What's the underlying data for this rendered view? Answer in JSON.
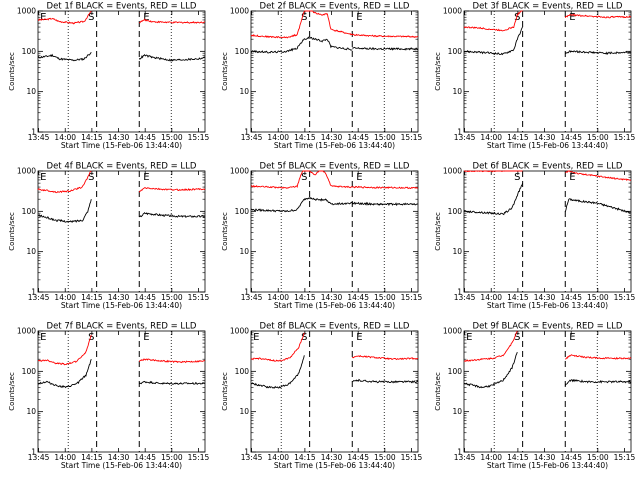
{
  "chart_data": {
    "type": "line",
    "ylabel": "Counts/sec",
    "xlabel": "Start Time (15-Feb-06 13:44:40)",
    "x_ticks": [
      "13:45",
      "14:00",
      "14:15",
      "14:30",
      "14:45",
      "15:00",
      "15:15"
    ],
    "y_ticks": [
      "1",
      "10",
      "100",
      "1000"
    ],
    "y_scale": "log",
    "ylim": [
      1,
      1000
    ],
    "x_range_minutes": [
      0,
      94
    ],
    "series_names": [
      "Events",
      "LLD"
    ],
    "series_colors": {
      "Events": "#000000",
      "LLD": "#ff0000"
    },
    "panels": [
      {
        "title": "Det 1f BLACK = Events, RED = LLD",
        "markers": [
          {
            "label": "E",
            "t": 3
          },
          {
            "label": "S",
            "t": 30
          },
          {
            "label": "E",
            "t": 61
          }
        ],
        "dotted": [
          17,
          75
        ],
        "dashed": [
          33,
          57
        ],
        "segments": [
          {
            "t": [
              0,
              5,
              8,
              12,
              20,
              26,
              30
            ],
            "events": [
              70,
              75,
              80,
              65,
              60,
              65,
              95
            ],
            "lld": [
              600,
              620,
              650,
              550,
              500,
              550,
              1000
            ]
          },
          {
            "t": [
              57,
              60,
              65,
              75,
              90,
              94
            ],
            "events": [
              65,
              80,
              70,
              60,
              65,
              70
            ],
            "lld": [
              520,
              600,
              540,
              520,
              520,
              530
            ]
          }
        ]
      },
      {
        "title": "Det 2f BLACK = Events, RED = LLD",
        "markers": [
          {
            "label": "S",
            "t": 30
          },
          {
            "label": "E",
            "t": 61
          }
        ],
        "dotted": [
          17,
          75
        ],
        "dashed": [
          33,
          57
        ],
        "segments": [
          {
            "t": [
              0,
              10,
              20,
              26,
              28,
              30,
              33
            ],
            "events": [
              100,
              95,
              100,
              120,
              160,
              200,
              220
            ],
            "lld": [
              250,
              230,
              220,
              260,
              500,
              1000,
              1200
            ]
          },
          {
            "t": [
              33,
              36,
              40,
              43,
              45,
              57
            ],
            "events": [
              220,
              200,
              180,
              200,
              130,
              110
            ],
            "lld": [
              1100,
              900,
              800,
              850,
              350,
              260
            ]
          },
          {
            "t": [
              57,
              70,
              94
            ],
            "events": [
              120,
              115,
              115
            ],
            "lld": [
              260,
              240,
              230
            ]
          }
        ]
      },
      {
        "title": "Det 3f BLACK = Events, RED = LLD",
        "markers": [
          {
            "label": "S",
            "t": 30
          },
          {
            "label": "E",
            "t": 61
          }
        ],
        "dotted": [
          17,
          75
        ],
        "dashed": [
          33,
          57
        ],
        "segments": [
          {
            "t": [
              0,
              8,
              16,
              22,
              28,
              30,
              33
            ],
            "events": [
              100,
              95,
              90,
              85,
              110,
              200,
              400
            ],
            "lld": [
              400,
              380,
              350,
              330,
              400,
              800,
              1100
            ]
          },
          {
            "t": [
              57,
              60,
              70,
              80,
              94
            ],
            "events": [
              90,
              100,
              95,
              90,
              95
            ],
            "lld": [
              700,
              800,
              750,
              700,
              720
            ]
          }
        ]
      },
      {
        "title": "Det 4f BLACK = Events, RED = LLD",
        "markers": [
          {
            "label": "E",
            "t": 3
          },
          {
            "label": "S",
            "t": 30
          },
          {
            "label": "E",
            "t": 61
          }
        ],
        "dotted": [
          17,
          75
        ],
        "dashed": [
          33,
          57
        ],
        "segments": [
          {
            "t": [
              0,
              5,
              10,
              18,
              25,
              28,
              30
            ],
            "events": [
              80,
              70,
              60,
              55,
              60,
              100,
              200
            ],
            "lld": [
              350,
              330,
              300,
              320,
              400,
              700,
              1100
            ]
          },
          {
            "t": [
              57,
              60,
              70,
              80,
              94
            ],
            "events": [
              70,
              90,
              80,
              75,
              75
            ],
            "lld": [
              300,
              380,
              350,
              340,
              360
            ]
          }
        ]
      },
      {
        "title": "Det 5f BLACK = Events, RED = LLD",
        "markers": [
          {
            "label": "S",
            "t": 30
          },
          {
            "label": "E",
            "t": 61
          }
        ],
        "dotted": [
          17,
          75
        ],
        "dashed": [
          33,
          57
        ],
        "segments": [
          {
            "t": [
              0,
              10,
              20,
              26,
              28,
              30,
              33
            ],
            "events": [
              110,
              105,
              100,
              110,
              150,
              200,
              220
            ],
            "lld": [
              420,
              400,
              380,
              420,
              800,
              1200,
              1300
            ]
          },
          {
            "t": [
              33,
              36,
              39,
              42,
              45,
              57
            ],
            "events": [
              210,
              200,
              190,
              200,
              150,
              160
            ],
            "lld": [
              1000,
              800,
              1100,
              900,
              420,
              400
            ]
          },
          {
            "t": [
              57,
              70,
              94
            ],
            "events": [
              160,
              150,
              150
            ],
            "lld": [
              400,
              390,
              380
            ]
          }
        ]
      },
      {
        "title": "Det 6f BLACK = Events, RED = LLD",
        "markers": [
          {
            "label": "S",
            "t": 30
          },
          {
            "label": "E",
            "t": 61
          }
        ],
        "dotted": [
          17,
          75
        ],
        "dashed": [
          33,
          57
        ],
        "segments": [
          {
            "t": [
              0,
              8,
              16,
              22,
              27,
              30,
              33
            ],
            "events": [
              100,
              95,
              90,
              85,
              120,
              250,
              500
            ],
            "lld": [
              1000,
              1000,
              1000,
              1000,
              1100,
              1200,
              1300
            ]
          },
          {
            "t": [
              57,
              59,
              65,
              75,
              85,
              94
            ],
            "events": [
              100,
              200,
              180,
              160,
              120,
              90
            ],
            "lld": [
              900,
              1000,
              850,
              750,
              650,
              600
            ]
          }
        ]
      },
      {
        "title": "Det 7f BLACK = Events, RED = LLD",
        "markers": [
          {
            "label": "E",
            "t": 3
          },
          {
            "label": "S",
            "t": 30
          },
          {
            "label": "E",
            "t": 61
          }
        ],
        "dotted": [
          17,
          75
        ],
        "dashed": [
          33,
          57
        ],
        "segments": [
          {
            "t": [
              0,
              5,
              10,
              16,
              22,
              27,
              30
            ],
            "events": [
              50,
              55,
              45,
              40,
              50,
              80,
              200
            ],
            "lld": [
              180,
              190,
              160,
              150,
              180,
              300,
              800
            ]
          },
          {
            "t": [
              57,
              60,
              70,
              80,
              94
            ],
            "events": [
              50,
              55,
              50,
              50,
              50
            ],
            "lld": [
              180,
              200,
              180,
              170,
              180
            ]
          }
        ]
      },
      {
        "title": "Det 8f BLACK = Events, RED = LLD",
        "markers": [
          {
            "label": "E",
            "t": 3
          },
          {
            "label": "S",
            "t": 30
          },
          {
            "label": "E",
            "t": 61
          }
        ],
        "dotted": [
          17,
          75
        ],
        "dashed": [
          33,
          57
        ],
        "segments": [
          {
            "t": [
              0,
              5,
              10,
              16,
              22,
              27,
              30
            ],
            "events": [
              50,
              45,
              40,
              40,
              50,
              90,
              250
            ],
            "lld": [
              200,
              210,
              190,
              180,
              220,
              400,
              900
            ]
          },
          {
            "t": [
              57,
              60,
              70,
              80,
              94
            ],
            "events": [
              55,
              60,
              55,
              55,
              55
            ],
            "lld": [
              220,
              240,
              220,
              200,
              210
            ]
          }
        ]
      },
      {
        "title": "Det 9f BLACK = Events, RED = LLD",
        "markers": [
          {
            "label": "E",
            "t": 3
          },
          {
            "label": "S",
            "t": 30
          },
          {
            "label": "E",
            "t": 61
          }
        ],
        "dotted": [
          17,
          75
        ],
        "dashed": [
          33,
          57
        ],
        "segments": [
          {
            "t": [
              0,
              5,
              10,
              16,
              22,
              27,
              30
            ],
            "events": [
              50,
              45,
              40,
              45,
              60,
              120,
              300
            ],
            "lld": [
              180,
              190,
              200,
              210,
              250,
              500,
              1000
            ]
          },
          {
            "t": [
              57,
              60,
              70,
              80,
              94
            ],
            "events": [
              45,
              60,
              55,
              55,
              55
            ],
            "lld": [
              200,
              250,
              220,
              210,
              210
            ]
          }
        ]
      }
    ]
  }
}
